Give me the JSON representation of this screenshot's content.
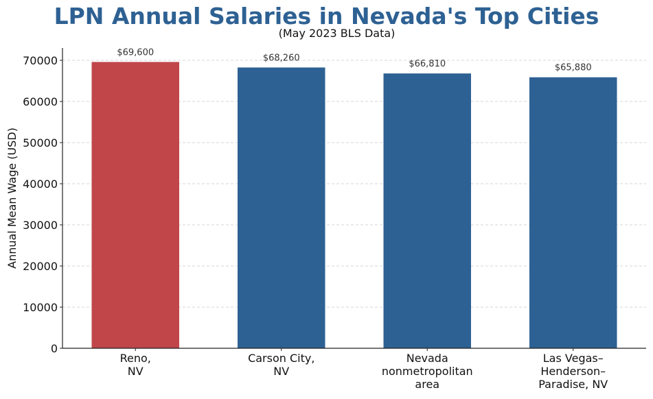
{
  "chart_data": {
    "type": "bar",
    "title": "LPN Annual Salaries in Nevada's Top Cities",
    "subtitle": "(May 2023 BLS Data)",
    "xlabel": "",
    "ylabel": "Annual Mean Wage (USD)",
    "categories": [
      [
        "Reno,",
        "NV"
      ],
      [
        "Carson City,",
        "NV"
      ],
      [
        "Nevada",
        "nonmetropolitan",
        "area"
      ],
      [
        "Las Vegas–",
        "Henderson–",
        "Paradise, NV"
      ]
    ],
    "values": [
      69600,
      68260,
      66810,
      65880
    ],
    "data_labels": [
      "$69,600",
      "$68,260",
      "$66,810",
      "$65,880"
    ],
    "bar_colors": [
      "#c0464a",
      "#2e6193",
      "#2e6193",
      "#2e6193"
    ],
    "ylim": [
      0,
      73000
    ],
    "yticks": [
      0,
      10000,
      20000,
      30000,
      40000,
      50000,
      60000,
      70000
    ],
    "ytick_labels": [
      "0",
      "10000",
      "20000",
      "30000",
      "40000",
      "50000",
      "60000",
      "70000"
    ],
    "grid": "y-dashed",
    "legend": "none"
  }
}
